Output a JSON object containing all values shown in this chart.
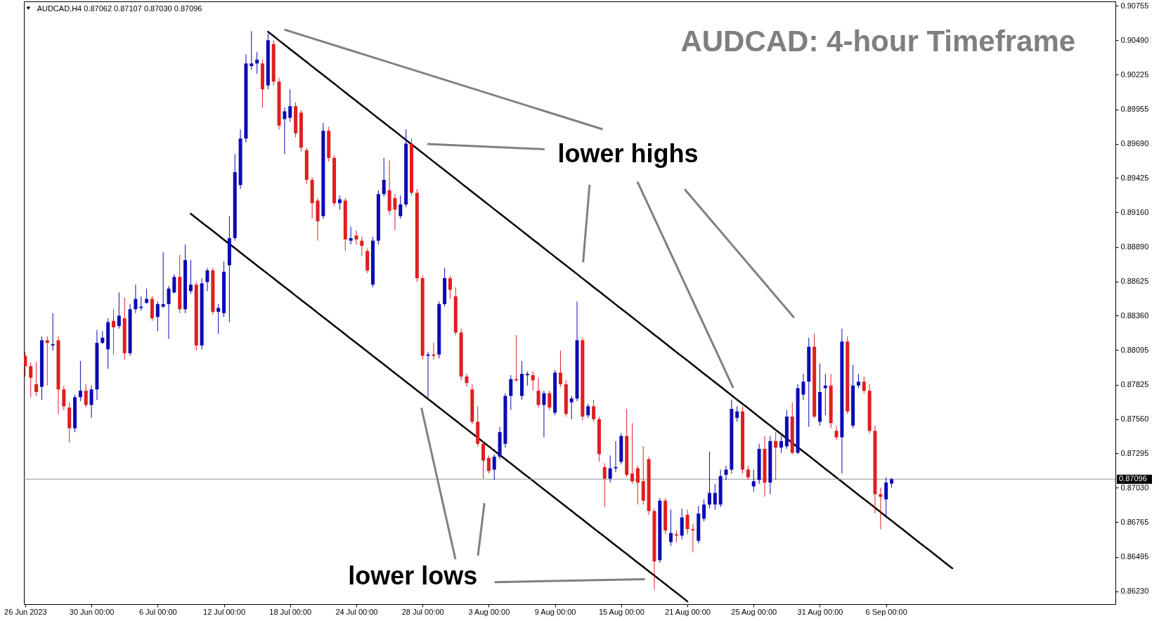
{
  "chart_data": {
    "type": "candlestick",
    "title": "AUDCAD: 4-hour Timeframe",
    "annotations": [
      "AUDCAD,H4 0.87062 0.87107 0.87030 0.87096",
      "lower highs",
      "lower lows"
    ],
    "categories": [
      "26 Jun 2023",
      null,
      null,
      null,
      null,
      null,
      null,
      null,
      null,
      null,
      null,
      null,
      "30 Jun 00:00",
      null,
      null,
      null,
      null,
      null,
      null,
      null,
      null,
      null,
      null,
      null,
      "6 Jul 00:00",
      null,
      null,
      null,
      null,
      null,
      null,
      null,
      null,
      null,
      null,
      null,
      "12 Jul 00:00",
      null,
      null,
      null,
      null,
      null,
      null,
      null,
      null,
      null,
      null,
      null,
      "18 Jul 00:00",
      null,
      null,
      null,
      null,
      null,
      null,
      null,
      null,
      null,
      null,
      null,
      "24 Jul 00:00",
      null,
      null,
      null,
      null,
      null,
      null,
      null,
      null,
      null,
      null,
      null,
      "28 Jul 00:00",
      null,
      null,
      null,
      null,
      null,
      null,
      null,
      null,
      null,
      null,
      null,
      "3 Aug 00:00",
      null,
      null,
      null,
      null,
      null,
      null,
      null,
      null,
      null,
      null,
      null,
      "9 Aug 00:00",
      null,
      null,
      null,
      null,
      null,
      null,
      null,
      null,
      null,
      null,
      null,
      "15 Aug 00:00",
      null,
      null,
      null,
      null,
      null,
      null,
      null,
      null,
      null,
      null,
      null,
      "21 Aug 00:00",
      null,
      null,
      null,
      null,
      null,
      null,
      null,
      null,
      null,
      null,
      null,
      "25 Aug 00:00",
      null,
      null,
      null,
      null,
      null,
      null,
      null,
      null,
      null,
      null,
      null,
      "31 Aug 00:00",
      null,
      null,
      null,
      null,
      null,
      null,
      null,
      null,
      null,
      null,
      null,
      "6 Sep 00:00",
      null,
      null,
      null,
      null,
      null,
      null,
      null,
      null,
      null,
      null,
      null,
      null,
      null,
      null,
      null,
      null,
      null,
      null,
      null,
      null,
      null,
      null,
      null,
      null,
      null,
      null,
      null,
      null,
      null,
      null,
      null,
      null,
      null,
      null,
      null,
      null,
      null,
      null,
      null,
      null,
      null
    ],
    "ohlc": [
      [
        0.8805,
        0.8808,
        0.8789,
        0.8797
      ],
      [
        0.8797,
        0.88,
        0.8773,
        0.8788
      ],
      [
        0.8783,
        0.88,
        0.8774,
        0.8777
      ],
      [
        0.8781,
        0.882,
        0.8771,
        0.8817
      ],
      [
        0.8817,
        0.882,
        0.8782,
        0.8815
      ],
      [
        0.8813,
        0.8838,
        0.8809,
        0.8814
      ],
      [
        0.8817,
        0.882,
        0.876,
        0.8779
      ],
      [
        0.8779,
        0.8782,
        0.8763,
        0.8766
      ],
      [
        0.8765,
        0.8769,
        0.8738,
        0.8749
      ],
      [
        0.8749,
        0.8775,
        0.8746,
        0.8773
      ],
      [
        0.8773,
        0.8801,
        0.877,
        0.8778
      ],
      [
        0.8778,
        0.8783,
        0.8765,
        0.8767
      ],
      [
        0.8767,
        0.8782,
        0.8757,
        0.8779
      ],
      [
        0.8779,
        0.8825,
        0.8771,
        0.8815
      ],
      [
        0.8815,
        0.8824,
        0.8814,
        0.8819
      ],
      [
        0.881,
        0.8834,
        0.8795,
        0.8831
      ],
      [
        0.8832,
        0.8841,
        0.8806,
        0.8827
      ],
      [
        0.8828,
        0.8854,
        0.8826,
        0.8836
      ],
      [
        0.8834,
        0.885,
        0.8802,
        0.8807
      ],
      [
        0.8807,
        0.8845,
        0.8805,
        0.8841
      ],
      [
        0.8841,
        0.886,
        0.8838,
        0.8849
      ],
      [
        0.8842,
        0.8851,
        0.884,
        0.8843
      ],
      [
        0.8846,
        0.8857,
        0.8845,
        0.8849
      ],
      [
        0.8849,
        0.8851,
        0.8832,
        0.8834
      ],
      [
        0.8835,
        0.8847,
        0.8824,
        0.8845
      ],
      [
        0.8843,
        0.8885,
        0.8842,
        0.8845
      ],
      [
        0.8845,
        0.8859,
        0.8818,
        0.8857
      ],
      [
        0.8854,
        0.8868,
        0.8853,
        0.8866
      ],
      [
        0.8866,
        0.8883,
        0.8838,
        0.8841
      ],
      [
        0.8841,
        0.8891,
        0.8838,
        0.8879
      ],
      [
        0.8855,
        0.8879,
        0.8853,
        0.886
      ],
      [
        0.886,
        0.8862,
        0.8809,
        0.8813
      ],
      [
        0.8813,
        0.8865,
        0.881,
        0.8861
      ],
      [
        0.8862,
        0.8873,
        0.8855,
        0.8871
      ],
      [
        0.8871,
        0.8873,
        0.8837,
        0.8839
      ],
      [
        0.8839,
        0.8845,
        0.8822,
        0.8842
      ],
      [
        0.8838,
        0.8878,
        0.8835,
        0.887
      ],
      [
        0.8875,
        0.8913,
        0.8831,
        0.8896
      ],
      [
        0.8896,
        0.8961,
        0.8894,
        0.8947
      ],
      [
        0.8937,
        0.898,
        0.8934,
        0.8973
      ],
      [
        0.8973,
        0.9038,
        0.897,
        0.9031
      ],
      [
        0.9029,
        0.9056,
        0.9026,
        0.9031
      ],
      [
        0.9031,
        0.904,
        0.9023,
        0.9034
      ],
      [
        0.9031,
        0.9034,
        0.8997,
        0.9011
      ],
      [
        0.9014,
        0.9054,
        0.9011,
        0.9049
      ],
      [
        0.9046,
        0.9049,
        0.9014,
        0.9017
      ],
      [
        0.9017,
        0.902,
        0.898,
        0.8983
      ],
      [
        0.8988,
        0.8997,
        0.8961,
        0.8994
      ],
      [
        0.8989,
        0.9011,
        0.8986,
        0.8998
      ],
      [
        0.8998,
        0.9001,
        0.8974,
        0.8977
      ],
      [
        0.8993,
        0.8995,
        0.8963,
        0.8966
      ],
      [
        0.8964,
        0.8966,
        0.8938,
        0.8941
      ],
      [
        0.8941,
        0.8943,
        0.8911,
        0.8923
      ],
      [
        0.8925,
        0.8927,
        0.8894,
        0.8909
      ],
      [
        0.8913,
        0.8985,
        0.8911,
        0.8979
      ],
      [
        0.8979,
        0.8982,
        0.8955,
        0.8958
      ],
      [
        0.8958,
        0.896,
        0.8921,
        0.8923
      ],
      [
        0.8923,
        0.8929,
        0.8918,
        0.8926
      ],
      [
        0.8925,
        0.8927,
        0.8886,
        0.8895
      ],
      [
        0.8894,
        0.8905,
        0.8891,
        0.8896
      ],
      [
        0.8898,
        0.8902,
        0.8891,
        0.8895
      ],
      [
        0.8894,
        0.8897,
        0.8882,
        0.889
      ],
      [
        0.8886,
        0.8888,
        0.8869,
        0.8871
      ],
      [
        0.886,
        0.8897,
        0.8858,
        0.8894
      ],
      [
        0.8894,
        0.8933,
        0.8891,
        0.893
      ],
      [
        0.893,
        0.8958,
        0.8928,
        0.8941
      ],
      [
        0.8933,
        0.8956,
        0.8914,
        0.8917
      ],
      [
        0.8927,
        0.893,
        0.8902,
        0.8918
      ],
      [
        0.8913,
        0.8929,
        0.8911,
        0.8922
      ],
      [
        0.8922,
        0.898,
        0.892,
        0.8969
      ],
      [
        0.8969,
        0.8973,
        0.8929,
        0.8931
      ],
      [
        0.8931,
        0.8934,
        0.8862,
        0.8865
      ],
      [
        0.8865,
        0.8867,
        0.8802,
        0.8805
      ],
      [
        0.8805,
        0.8808,
        0.8773,
        0.8806
      ],
      [
        0.8806,
        0.8815,
        0.8802,
        0.8805
      ],
      [
        0.8806,
        0.8847,
        0.8803,
        0.8845
      ],
      [
        0.8845,
        0.8873,
        0.8843,
        0.8865
      ],
      [
        0.8865,
        0.8867,
        0.8849,
        0.8856
      ],
      [
        0.8851,
        0.8858,
        0.8821,
        0.8823
      ],
      [
        0.8823,
        0.8826,
        0.8786,
        0.8789
      ],
      [
        0.8789,
        0.8791,
        0.8781,
        0.8784
      ],
      [
        0.8779,
        0.8783,
        0.8752,
        0.8754
      ],
      [
        0.8754,
        0.8766,
        0.8735,
        0.8737
      ],
      [
        0.8737,
        0.8739,
        0.871,
        0.8724
      ],
      [
        0.8726,
        0.8728,
        0.8714,
        0.8716
      ],
      [
        0.8717,
        0.8729,
        0.8709,
        0.8727
      ],
      [
        0.8727,
        0.875,
        0.8725,
        0.8746
      ],
      [
        0.8737,
        0.8776,
        0.8734,
        0.8774
      ],
      [
        0.8774,
        0.879,
        0.8763,
        0.8787
      ],
      [
        0.8787,
        0.8821,
        0.8785,
        0.8786
      ],
      [
        0.8774,
        0.8801,
        0.8771,
        0.8791
      ],
      [
        0.879,
        0.8793,
        0.8782,
        0.8791
      ],
      [
        0.879,
        0.8793,
        0.8778,
        0.8786
      ],
      [
        0.8778,
        0.8788,
        0.8765,
        0.8767
      ],
      [
        0.8767,
        0.8778,
        0.8742,
        0.8776
      ],
      [
        0.8776,
        0.8778,
        0.8763,
        0.8765
      ],
      [
        0.8761,
        0.8794,
        0.8759,
        0.8792
      ],
      [
        0.8792,
        0.8809,
        0.8781,
        0.8783
      ],
      [
        0.8783,
        0.8786,
        0.8758,
        0.876
      ],
      [
        0.8769,
        0.8774,
        0.8756,
        0.8772
      ],
      [
        0.8772,
        0.8847,
        0.877,
        0.8817
      ],
      [
        0.8817,
        0.8819,
        0.8755,
        0.8758
      ],
      [
        0.8759,
        0.8768,
        0.8757,
        0.8766
      ],
      [
        0.8766,
        0.8771,
        0.8754,
        0.8756
      ],
      [
        0.8756,
        0.8758,
        0.8723,
        0.8729
      ],
      [
        0.8719,
        0.8722,
        0.8688,
        0.871
      ],
      [
        0.871,
        0.8728,
        0.8707,
        0.8718
      ],
      [
        0.8718,
        0.8739,
        0.8715,
        0.8719
      ],
      [
        0.8723,
        0.8745,
        0.8721,
        0.8743
      ],
      [
        0.8743,
        0.8764,
        0.8711,
        0.8713
      ],
      [
        0.8714,
        0.8753,
        0.8706,
        0.8708
      ],
      [
        0.8718,
        0.872,
        0.869,
        0.8707
      ],
      [
        0.8708,
        0.8735,
        0.869,
        0.8693
      ],
      [
        0.8725,
        0.8727,
        0.8682,
        0.8685
      ],
      [
        0.8685,
        0.8687,
        0.8624,
        0.8646
      ],
      [
        0.8647,
        0.8695,
        0.8645,
        0.8693
      ],
      [
        0.8693,
        0.8695,
        0.8667,
        0.867
      ],
      [
        0.8661,
        0.8686,
        0.8658,
        0.8668
      ],
      [
        0.8667,
        0.867,
        0.8661,
        0.8666
      ],
      [
        0.8666,
        0.8687,
        0.8663,
        0.868
      ],
      [
        0.8682,
        0.8686,
        0.8667,
        0.8671
      ],
      [
        0.8671,
        0.8675,
        0.8653,
        0.867
      ],
      [
        0.8662,
        0.8689,
        0.866,
        0.8683
      ],
      [
        0.8679,
        0.8694,
        0.8677,
        0.869
      ],
      [
        0.869,
        0.8731,
        0.8687,
        0.8699
      ],
      [
        0.869,
        0.8706,
        0.8686,
        0.8699
      ],
      [
        0.869,
        0.8717,
        0.8688,
        0.8712
      ],
      [
        0.8713,
        0.872,
        0.8709,
        0.8717
      ],
      [
        0.8717,
        0.8771,
        0.8714,
        0.8764
      ],
      [
        0.8757,
        0.8766,
        0.8754,
        0.8762
      ],
      [
        0.8762,
        0.8766,
        0.8714,
        0.8717
      ],
      [
        0.8717,
        0.872,
        0.8709,
        0.8711
      ],
      [
        0.8704,
        0.8717,
        0.87,
        0.8708
      ],
      [
        0.8709,
        0.8737,
        0.8706,
        0.8733
      ],
      [
        0.8733,
        0.8743,
        0.8696,
        0.8707
      ],
      [
        0.8707,
        0.8743,
        0.8698,
        0.8739
      ],
      [
        0.8739,
        0.8746,
        0.8709,
        0.8734
      ],
      [
        0.8734,
        0.8743,
        0.873,
        0.8739
      ],
      [
        0.8735,
        0.8763,
        0.8733,
        0.8758
      ],
      [
        0.8758,
        0.8769,
        0.8729,
        0.873
      ],
      [
        0.873,
        0.8783,
        0.8729,
        0.878
      ],
      [
        0.8775,
        0.8791,
        0.8771,
        0.8785
      ],
      [
        0.8785,
        0.8819,
        0.875,
        0.8812
      ],
      [
        0.8812,
        0.8822,
        0.8757,
        0.8758
      ],
      [
        0.8754,
        0.8799,
        0.8751,
        0.8777
      ],
      [
        0.878,
        0.8791,
        0.8759,
        0.8782
      ],
      [
        0.8782,
        0.8791,
        0.8749,
        0.8753
      ],
      [
        0.8747,
        0.8751,
        0.874,
        0.8742
      ],
      [
        0.8742,
        0.8826,
        0.8714,
        0.8816
      ],
      [
        0.8816,
        0.882,
        0.876,
        0.8762
      ],
      [
        0.8751,
        0.8798,
        0.8749,
        0.8782
      ],
      [
        0.8782,
        0.8791,
        0.878,
        0.8785
      ],
      [
        0.8785,
        0.8789,
        0.8776,
        0.8778
      ],
      [
        0.8778,
        0.8783,
        0.8745,
        0.8747
      ],
      [
        0.8747,
        0.8751,
        0.8683,
        0.8698
      ],
      [
        0.8698,
        0.8703,
        0.8671,
        0.8696
      ],
      [
        0.8694,
        0.8711,
        0.868,
        0.8707
      ],
      [
        0.87062,
        0.87107,
        0.8703,
        0.87096
      ],
      null,
      null,
      null,
      null,
      null,
      null,
      null,
      null,
      null,
      null,
      null,
      null,
      null,
      null,
      null,
      null,
      null,
      null,
      null,
      null,
      null,
      null,
      null,
      null,
      null,
      null,
      null,
      null,
      null,
      null,
      null,
      null,
      null,
      null,
      null,
      null,
      null,
      null,
      null,
      null
    ],
    "colors": [
      "#e01e1e",
      "#e01e1e",
      "#e01e1e",
      "#0a0ab4",
      "#e01e1e",
      "#0a0ab4",
      "#e01e1e",
      "#e01e1e",
      "#e01e1e",
      "#0a0ab4",
      "#0a0ab4",
      "#e01e1e",
      "#0a0ab4",
      "#0a0ab4",
      "#0a0ab4",
      "#0a0ab4",
      "#e01e1e",
      "#0a0ab4",
      "#e01e1e",
      "#0a0ab4",
      "#0a0ab4",
      "#0a0ab4",
      "#0a0ab4",
      "#e01e1e",
      "#0a0ab4",
      "#0a0ab4",
      "#0a0ab4",
      "#0a0ab4",
      "#e01e1e",
      "#0a0ab4",
      "#0a0ab4",
      "#e01e1e",
      "#0a0ab4",
      "#0a0ab4",
      "#e01e1e",
      "#0a0ab4",
      "#0a0ab4",
      "#0a0ab4",
      "#0a0ab4",
      "#0a0ab4",
      "#0a0ab4",
      "#0a0ab4",
      "#0a0ab4",
      "#e01e1e",
      "#0a0ab4",
      "#e01e1e",
      "#e01e1e",
      "#0a0ab4",
      "#0a0ab4",
      "#e01e1e",
      "#e01e1e",
      "#e01e1e",
      "#e01e1e",
      "#e01e1e",
      "#0a0ab4",
      "#e01e1e",
      "#e01e1e",
      "#0a0ab4",
      "#e01e1e",
      "#0a0ab4",
      "#e01e1e",
      "#e01e1e",
      "#e01e1e",
      "#0a0ab4",
      "#0a0ab4",
      "#0a0ab4",
      "#e01e1e",
      "#e01e1e",
      "#0a0ab4",
      "#0a0ab4",
      "#e01e1e",
      "#e01e1e",
      "#e01e1e",
      "#0a0ab4",
      "#e01e1e",
      "#0a0ab4",
      "#0a0ab4",
      "#e01e1e",
      "#e01e1e",
      "#e01e1e",
      "#e01e1e",
      "#e01e1e",
      "#e01e1e",
      "#e01e1e",
      "#e01e1e",
      "#0a0ab4",
      "#0a0ab4",
      "#0a0ab4",
      "#0a0ab4",
      "#e01e1e",
      "#0a0ab4",
      "#0a0ab4",
      "#e01e1e",
      "#e01e1e",
      "#0a0ab4",
      "#e01e1e",
      "#0a0ab4",
      "#e01e1e",
      "#e01e1e",
      "#0a0ab4",
      "#0a0ab4",
      "#e01e1e",
      "#0a0ab4",
      "#e01e1e",
      "#e01e1e",
      "#e01e1e",
      "#0a0ab4",
      "#0a0ab4",
      "#0a0ab4",
      "#e01e1e",
      "#e01e1e",
      "#e01e1e",
      "#e01e1e",
      "#e01e1e",
      "#e01e1e",
      "#0a0ab4",
      "#e01e1e",
      "#0a0ab4",
      "#e01e1e",
      "#0a0ab4",
      "#e01e1e",
      "#e01e1e",
      "#0a0ab4",
      "#0a0ab4",
      "#0a0ab4",
      "#0a0ab4",
      "#0a0ab4",
      "#0a0ab4",
      "#0a0ab4",
      "#0a0ab4",
      "#e01e1e",
      "#e01e1e",
      "#0a0ab4",
      "#0a0ab4",
      "#e01e1e",
      "#0a0ab4",
      "#e01e1e",
      "#0a0ab4",
      "#0a0ab4",
      "#e01e1e",
      "#0a0ab4",
      "#0a0ab4",
      "#0a0ab4",
      "#e01e1e",
      "#0a0ab4",
      "#0a0ab4",
      "#e01e1e",
      "#e01e1e",
      "#0a0ab4",
      "#e01e1e",
      "#0a0ab4",
      "#0a0ab4",
      "#e01e1e",
      "#e01e1e",
      "#e01e1e",
      "#e01e1e",
      "#0a0ab4",
      "#0a0ab4",
      null,
      null,
      null,
      null,
      null,
      null,
      null,
      null,
      null,
      null,
      null,
      null,
      null,
      null,
      null,
      null,
      null,
      null,
      null,
      null,
      null,
      null,
      null,
      null,
      null,
      null,
      null,
      null,
      null,
      null,
      null,
      null,
      null,
      null,
      null,
      null,
      null,
      null,
      null,
      null
    ],
    "series": [
      {
        "type": "line",
        "color": "#000000",
        "values": [
          null,
          null,
          null,
          null,
          null,
          null,
          null,
          null,
          null,
          null,
          null,
          null,
          null,
          null,
          null,
          null,
          null,
          null,
          null,
          null,
          null,
          null,
          null,
          null,
          null,
          null,
          null,
          null,
          null,
          null,
          null,
          null,
          null,
          null,
          null,
          null,
          null,
          null,
          null,
          null,
          null,
          null,
          null,
          null,
          0.90555,
          0.90522,
          0.90488,
          0.90455,
          0.90421,
          0.90388,
          0.90354,
          0.90321,
          0.90287,
          0.90254,
          0.90221,
          0.90187,
          0.90154,
          0.9012,
          0.90087,
          0.90053,
          0.9002,
          0.89986,
          0.89953,
          0.89919,
          0.89886,
          0.89853,
          0.89819,
          0.89786,
          0.89752,
          0.89719,
          0.89685,
          0.89652,
          0.89618,
          0.89585,
          0.89551,
          0.89518,
          0.89485,
          0.89451,
          0.89418,
          0.89384,
          0.89351,
          0.89317,
          0.89284,
          0.8925,
          0.89217,
          0.89183,
          0.8915,
          0.89117,
          0.89083,
          0.8905,
          0.89016,
          0.88983,
          0.88949,
          0.88916,
          0.88882,
          0.88849,
          0.88815,
          0.88782,
          0.88749,
          0.88715,
          0.88682,
          0.88648,
          0.88615,
          0.88581,
          0.88548,
          0.88514,
          0.88481,
          0.88447,
          0.88414,
          0.88381,
          0.88347,
          0.88314,
          0.8828,
          0.88247,
          0.88213,
          0.8818,
          0.88146,
          0.88113,
          0.88079,
          0.88046,
          0.88013,
          0.87979,
          0.87946,
          0.87912,
          0.87879,
          0.87845,
          0.87812,
          0.87778,
          0.87745,
          0.87711,
          0.87678,
          0.87645,
          0.87611,
          0.87578,
          0.87544,
          0.87511,
          0.87477,
          0.87444,
          0.8741,
          0.87377,
          0.87343,
          0.8731,
          0.87277,
          0.87243,
          0.8721,
          0.87176,
          0.87143,
          0.87109,
          0.87076,
          0.87042,
          0.87009,
          0.86975,
          0.86942,
          0.86909,
          0.86875,
          0.86842,
          0.86808,
          0.86775,
          0.86741,
          0.86708,
          0.86674,
          0.86641,
          0.86607,
          0.86574,
          0.86541,
          0.86507,
          0.86474,
          0.8644,
          0.86407,
          null,
          null,
          null,
          null,
          null,
          null,
          null,
          null,
          null,
          null,
          null,
          null,
          null,
          null,
          null,
          null,
          null,
          null,
          null,
          null,
          null,
          null,
          null,
          null,
          null,
          null,
          null,
          null,
          null
        ]
      },
      {
        "type": "line",
        "color": "#000000",
        "values": [
          null,
          null,
          null,
          null,
          null,
          null,
          null,
          null,
          null,
          null,
          null,
          null,
          null,
          null,
          null,
          null,
          null,
          null,
          null,
          null,
          null,
          null,
          null,
          null,
          null,
          null,
          null,
          null,
          null,
          null,
          0.89148,
          0.89115,
          0.89081,
          0.89048,
          0.89015,
          0.88982,
          0.88948,
          0.88915,
          0.88882,
          0.88848,
          0.88815,
          0.88782,
          0.88748,
          0.88715,
          0.88682,
          0.88649,
          0.88615,
          0.88582,
          0.88549,
          0.88515,
          0.88482,
          0.88449,
          0.88416,
          0.88382,
          0.88349,
          0.88316,
          0.88282,
          0.88249,
          0.88216,
          0.88182,
          0.88149,
          0.88116,
          0.88083,
          0.88049,
          0.88016,
          0.87983,
          0.87949,
          0.87916,
          0.87883,
          0.87849,
          0.87816,
          0.87783,
          0.8775,
          0.87716,
          0.87683,
          0.8765,
          0.87616,
          0.87583,
          0.8755,
          0.87516,
          0.87483,
          0.8745,
          0.87417,
          0.87383,
          0.8735,
          0.87317,
          0.87283,
          0.8725,
          0.87217,
          0.87184,
          0.8715,
          0.87117,
          0.87084,
          0.8705,
          0.87017,
          0.86984,
          0.8695,
          0.86917,
          0.86884,
          0.86851,
          0.86817,
          0.86784,
          0.86751,
          0.86717,
          0.86684,
          0.86651,
          0.86617,
          0.86584,
          0.86551,
          0.86518,
          0.86484,
          0.86451,
          0.86418,
          0.86384,
          0.86351,
          0.86318,
          0.86285,
          0.86251,
          0.86218,
          0.86185,
          0.86151,
          null,
          null,
          null,
          null,
          null,
          null,
          null,
          null,
          null,
          null,
          null,
          null,
          null,
          null,
          null,
          null,
          null,
          null,
          null,
          null,
          null,
          null,
          null,
          null,
          null,
          null,
          null,
          null,
          null,
          null,
          null,
          null,
          null,
          null,
          null,
          null,
          null,
          null,
          null,
          null,
          null,
          null,
          null,
          null,
          null,
          null,
          null,
          null,
          null,
          null,
          null,
          null,
          null,
          null,
          null,
          null,
          null,
          null,
          null,
          null,
          null,
          null,
          null,
          null,
          null,
          null,
          null,
          null,
          null,
          null,
          null,
          null,
          null,
          null,
          null,
          null,
          null
        ]
      }
    ],
    "ylim": [
      0.8613,
      0.9079
    ],
    "yticks": [
      0.90755,
      {
        "value": 0.9049,
        "label": "0.90490"
      },
      0.90225,
      0.89955,
      {
        "value": 0.8969,
        "label": "0.89690"
      },
      0.89425,
      {
        "value": 0.8916,
        "label": "0.89160"
      },
      {
        "value": 0.8889,
        "label": "0.88890"
      },
      0.88625,
      {
        "value": 0.8836,
        "label": "0.88360"
      },
      0.88095,
      0.87825,
      {
        "value": 0.8756,
        "label": "0.87560"
      },
      0.87295,
      {
        "value": 0.8703,
        "label": "0.87030"
      },
      0.86765,
      0.86495,
      {
        "value": 0.8623,
        "label": "0.86230"
      }
    ],
    "ref_lines": [
      {
        "axis": "y",
        "value": 0.87096,
        "label": "0.87096",
        "color": "#8a939b"
      }
    ]
  }
}
